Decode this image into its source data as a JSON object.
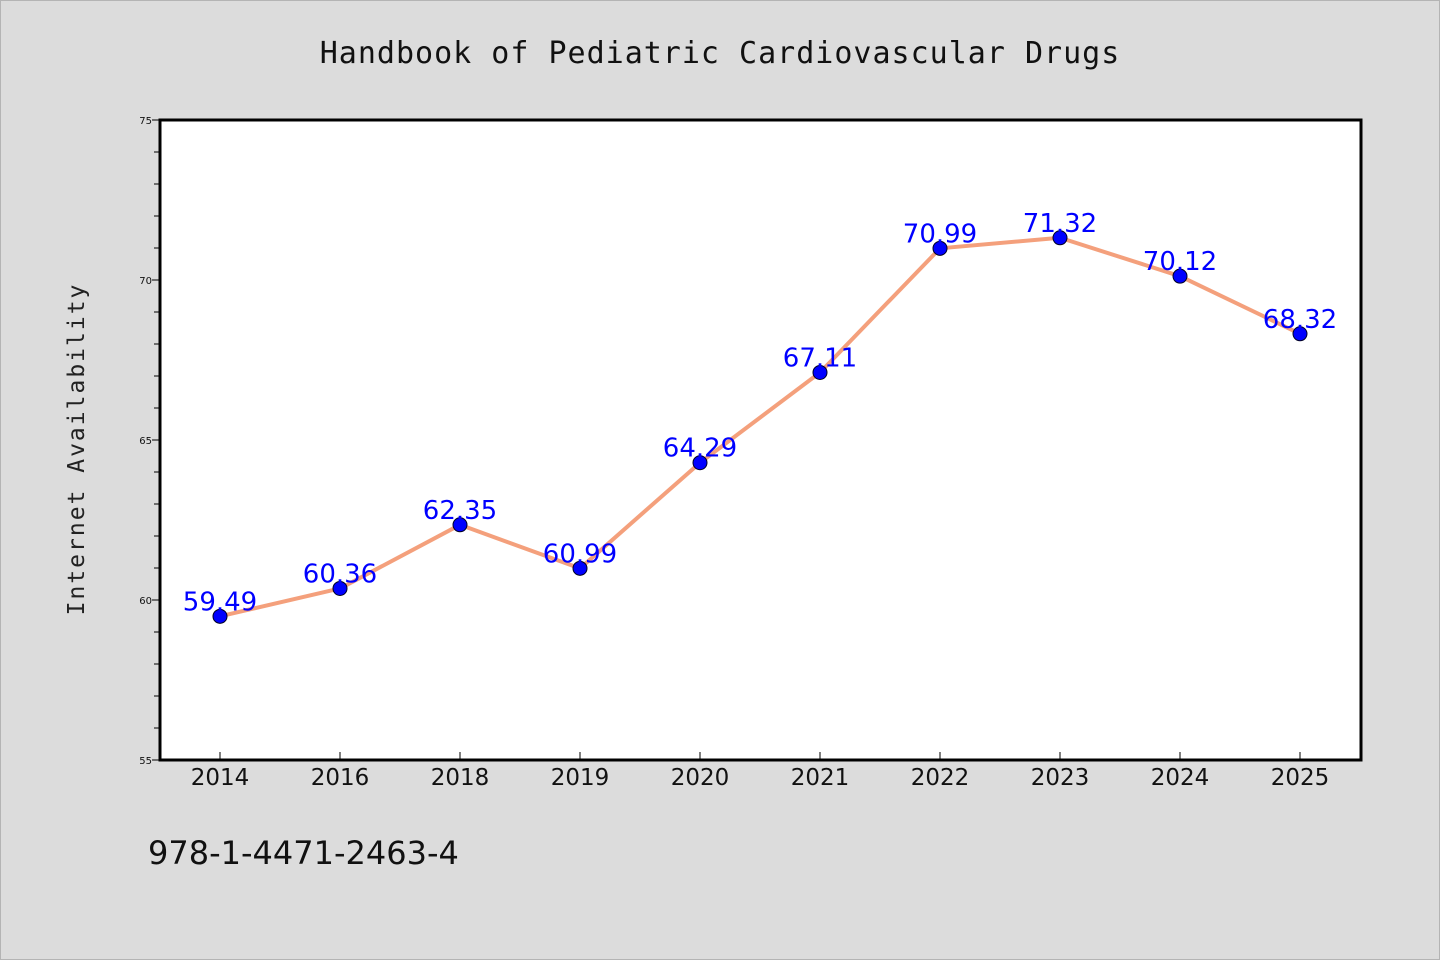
{
  "chart_data": {
    "type": "line",
    "title": "Handbook of Pediatric Cardiovascular Drugs",
    "xlabel": "",
    "ylabel": "Internet Availability",
    "categories": [
      "2014",
      "2016",
      "2018",
      "2019",
      "2020",
      "2021",
      "2022",
      "2023",
      "2024",
      "2025"
    ],
    "series": [
      {
        "values": [
          59.49,
          60.36,
          62.35,
          60.99,
          64.29,
          67.11,
          70.99,
          71.32,
          70.12,
          68.32
        ]
      }
    ],
    "data_labels": [
      "59.49",
      "60.36",
      "62.35",
      "60.99",
      "64.29",
      "67.11",
      "70.99",
      "71.32",
      "70.12",
      "68.32"
    ],
    "ylim": [
      55,
      75
    ],
    "yticks": [
      "55",
      "60",
      "65",
      "70",
      "75"
    ],
    "grid": false,
    "legend": "none",
    "colors": {
      "line": "#f4a07c",
      "marker": "#0000ff",
      "label": "#0000ff",
      "background": "#dcdcdc",
      "plot": "#ffffff"
    }
  },
  "footer": {
    "isbn": "978-1-4471-2463-4"
  }
}
